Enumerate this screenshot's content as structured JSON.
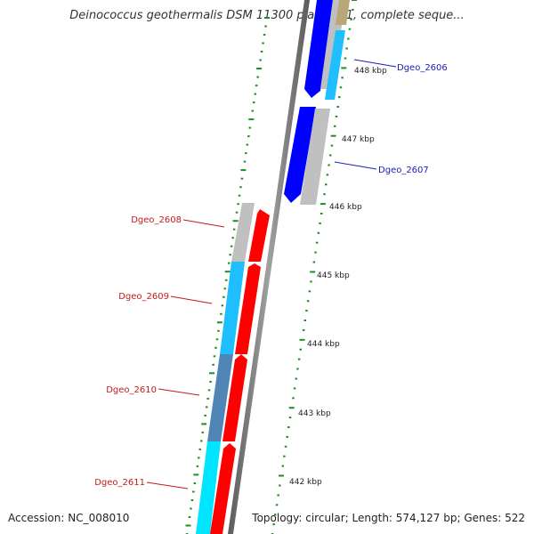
{
  "title": "Deinococcus geothermalis DSM 11300 plasmid 1, complete seque...",
  "footer": {
    "accession": "Accession: NC_008010",
    "summary": "Topology: circular; Length: 574,127 bp; Genes: 522"
  },
  "colors": {
    "forward": "#0000ff",
    "reverse": "#ff0000",
    "gray": "#c0c0c0",
    "cyan": "#1fbfff",
    "steel": "#4f86b6",
    "aqua": "#00e5ff",
    "tan": "#b9a77a",
    "tick": "#1f8f1f",
    "forward_label": "#1c1cbf",
    "reverse_label": "#c41a1a"
  },
  "ticks": [
    {
      "label": "448 kbp"
    },
    {
      "label": "447 kbp"
    },
    {
      "label": "446 kbp"
    },
    {
      "label": "445 kbp"
    },
    {
      "label": "444 kbp"
    },
    {
      "label": "443 kbp"
    },
    {
      "label": "442 kbp"
    }
  ],
  "genes": [
    {
      "label": "Dgeo_2606",
      "strand": "+"
    },
    {
      "label": "Dgeo_2607",
      "strand": "+"
    },
    {
      "label": "Dgeo_2608",
      "strand": "-"
    },
    {
      "label": "Dgeo_2609",
      "strand": "-"
    },
    {
      "label": "Dgeo_2610",
      "strand": "-"
    },
    {
      "label": "Dgeo_2611",
      "strand": "-"
    }
  ]
}
